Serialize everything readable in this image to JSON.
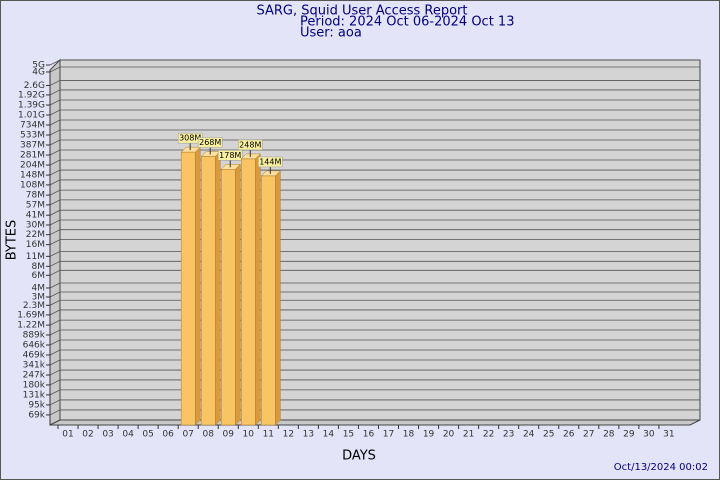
{
  "chart_data": {
    "type": "bar",
    "title": "SARG, Squid User Access Report",
    "subtitle": "Period: 2024 Oct 06-2024 Oct 13",
    "user": "User: aoa",
    "x_label": "DAYS",
    "y_label": "BYTES",
    "timestamp": "Oct/13/2024 00:02",
    "categories": [
      "01",
      "02",
      "03",
      "04",
      "05",
      "06",
      "07",
      "08",
      "09",
      "10",
      "11",
      "12",
      "13",
      "14",
      "15",
      "16",
      "17",
      "18",
      "19",
      "20",
      "21",
      "22",
      "23",
      "24",
      "25",
      "26",
      "27",
      "28",
      "29",
      "30",
      "31"
    ],
    "values": [
      null,
      null,
      null,
      null,
      null,
      null,
      308000000,
      268000000,
      178000000,
      248000000,
      144000000,
      null,
      null,
      null,
      null,
      null,
      null,
      null,
      null,
      null,
      null,
      null,
      null,
      null,
      null,
      null,
      null,
      null,
      null,
      null,
      null
    ],
    "value_labels": [
      null,
      null,
      null,
      null,
      null,
      null,
      "308M",
      "268M",
      "178M",
      "248M",
      "144M",
      null,
      null,
      null,
      null,
      null,
      null,
      null,
      null,
      null,
      null,
      null,
      null,
      null,
      null,
      null,
      null,
      null,
      null,
      null,
      null
    ],
    "color": "#f8c464",
    "log_scale": true,
    "grid": true,
    "ylim": [
      50000,
      5000000000
    ],
    "yticks": [
      {
        "value": 69000,
        "label": "69k"
      },
      {
        "value": 95000,
        "label": "95k"
      },
      {
        "value": 131000,
        "label": "131k"
      },
      {
        "value": 180000,
        "label": "180k"
      },
      {
        "value": 247000,
        "label": "247k"
      },
      {
        "value": 341000,
        "label": "341k"
      },
      {
        "value": 469000,
        "label": "469k"
      },
      {
        "value": 646000,
        "label": "646k"
      },
      {
        "value": 889000,
        "label": "889k"
      },
      {
        "value": 1220000,
        "label": "1.22M"
      },
      {
        "value": 1690000,
        "label": "1.69M"
      },
      {
        "value": 2300000,
        "label": "2.3M"
      },
      {
        "value": 3000000,
        "label": "3M"
      },
      {
        "value": 4000000,
        "label": "4M"
      },
      {
        "value": 6000000,
        "label": "6M"
      },
      {
        "value": 8000000,
        "label": "8M"
      },
      {
        "value": 11000000,
        "label": "11M"
      },
      {
        "value": 16000000,
        "label": "16M"
      },
      {
        "value": 22000000,
        "label": "22M"
      },
      {
        "value": 30000000,
        "label": "30M"
      },
      {
        "value": 41000000,
        "label": "41M"
      },
      {
        "value": 57000000,
        "label": "57M"
      },
      {
        "value": 78000000,
        "label": "78M"
      },
      {
        "value": 108000000,
        "label": "108M"
      },
      {
        "value": 148000000,
        "label": "148M"
      },
      {
        "value": 204000000,
        "label": "204M"
      },
      {
        "value": 281000000,
        "label": "281M"
      },
      {
        "value": 387000000,
        "label": "387M"
      },
      {
        "value": 533000000,
        "label": "533M"
      },
      {
        "value": 734000000,
        "label": "734M"
      },
      {
        "value": 1010000000,
        "label": "1.01G"
      },
      {
        "value": 1390000000,
        "label": "1.39G"
      },
      {
        "value": 1920000000,
        "label": "1.92G"
      },
      {
        "value": 2600000000,
        "label": "2.6G"
      },
      {
        "value": 4000000000,
        "label": "4G"
      },
      {
        "value": 5000000000,
        "label": "5G"
      }
    ]
  }
}
